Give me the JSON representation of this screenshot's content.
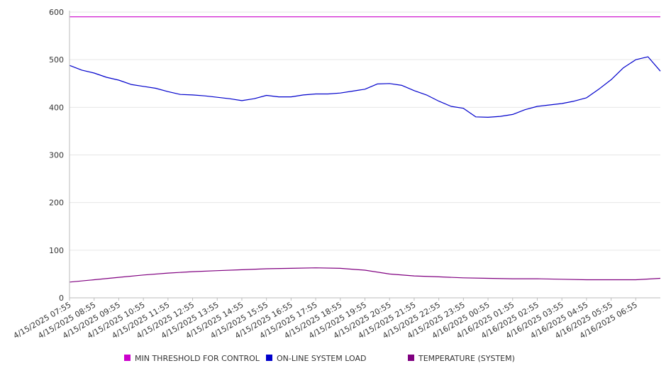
{
  "chart_data": {
    "type": "line",
    "title": "",
    "xlabel": "",
    "ylabel": "",
    "ylim": [
      0,
      600
    ],
    "yticks": [
      0,
      100,
      200,
      300,
      400,
      500,
      600
    ],
    "x_tick_labels": [
      "4/15/2025 07:55",
      "4/15/2025 08:55",
      "4/15/2025 09:55",
      "4/15/2025 10:55",
      "4/15/2025 11:55",
      "4/15/2025 12:55",
      "4/15/2025 13:55",
      "4/15/2025 14:55",
      "4/15/2025 15:55",
      "4/15/2025 16:55",
      "4/15/2025 17:55",
      "4/15/2025 18:55",
      "4/15/2025 19:55",
      "4/15/2025 20:55",
      "4/15/2025 21:55",
      "4/15/2025 22:55",
      "4/15/2025 23:55",
      "4/16/2025 00:55",
      "4/16/2025 01:55",
      "4/16/2025 02:55",
      "4/16/2025 03:55",
      "4/16/2025 04:55",
      "4/16/2025 05:55",
      "4/16/2025 06:55"
    ],
    "grid": "horizontal",
    "legend_position": "bottom",
    "series": [
      {
        "name": "MIN THRESHOLD FOR CONTROL",
        "color": "#cc00cc",
        "x": [
          "4/15/2025 07:55",
          "4/16/2025 07:55"
        ],
        "values": [
          590,
          590
        ]
      },
      {
        "name": "ON-LINE SYSTEM LOAD",
        "color": "#0000cc",
        "x": [
          "4/15/2025 07:55",
          "4/15/2025 08:25",
          "4/15/2025 08:55",
          "4/15/2025 09:25",
          "4/15/2025 09:55",
          "4/15/2025 10:25",
          "4/15/2025 10:55",
          "4/15/2025 11:25",
          "4/15/2025 11:55",
          "4/15/2025 12:25",
          "4/15/2025 12:55",
          "4/15/2025 13:25",
          "4/15/2025 13:55",
          "4/15/2025 14:25",
          "4/15/2025 14:55",
          "4/15/2025 15:25",
          "4/15/2025 15:55",
          "4/15/2025 16:25",
          "4/15/2025 16:55",
          "4/15/2025 17:25",
          "4/15/2025 17:55",
          "4/15/2025 18:25",
          "4/15/2025 18:55",
          "4/15/2025 19:25",
          "4/15/2025 19:55",
          "4/15/2025 20:25",
          "4/15/2025 20:55",
          "4/15/2025 21:25",
          "4/15/2025 21:55",
          "4/15/2025 22:25",
          "4/15/2025 22:55",
          "4/15/2025 23:25",
          "4/15/2025 23:55",
          "4/16/2025 00:25",
          "4/16/2025 00:55",
          "4/16/2025 01:25",
          "4/16/2025 01:55",
          "4/16/2025 02:25",
          "4/16/2025 02:55",
          "4/16/2025 03:25",
          "4/16/2025 03:55",
          "4/16/2025 04:25",
          "4/16/2025 04:55",
          "4/16/2025 05:25",
          "4/16/2025 05:55",
          "4/16/2025 06:25",
          "4/16/2025 06:55",
          "4/16/2025 07:25",
          "4/16/2025 07:55"
        ],
        "values": [
          488,
          478,
          472,
          463,
          457,
          448,
          444,
          440,
          433,
          427,
          426,
          424,
          421,
          418,
          414,
          418,
          425,
          422,
          422,
          426,
          428,
          428,
          430,
          434,
          438,
          449,
          450,
          446,
          435,
          426,
          413,
          402,
          398,
          380,
          379,
          381,
          385,
          395,
          402,
          405,
          408,
          413,
          420,
          438,
          458,
          483,
          500,
          506,
          476
        ]
      },
      {
        "name": "TEMPERATURE (SYSTEM)",
        "color": "#800080",
        "x": [
          "4/15/2025 07:55",
          "4/15/2025 08:55",
          "4/15/2025 09:55",
          "4/15/2025 10:55",
          "4/15/2025 11:55",
          "4/15/2025 12:55",
          "4/15/2025 13:55",
          "4/15/2025 14:55",
          "4/15/2025 15:55",
          "4/15/2025 16:55",
          "4/15/2025 17:55",
          "4/15/2025 18:55",
          "4/15/2025 19:55",
          "4/15/2025 20:55",
          "4/15/2025 21:55",
          "4/15/2025 22:55",
          "4/15/2025 23:55",
          "4/16/2025 00:55",
          "4/16/2025 01:55",
          "4/16/2025 02:55",
          "4/16/2025 03:55",
          "4/16/2025 04:55",
          "4/16/2025 05:55",
          "4/16/2025 06:55",
          "4/16/2025 07:55"
        ],
        "values": [
          33,
          38,
          43,
          48,
          52,
          55,
          57,
          59,
          61,
          62,
          63,
          62,
          58,
          50,
          46,
          44,
          42,
          41,
          40,
          40,
          39,
          38,
          38,
          38,
          41
        ]
      }
    ]
  }
}
